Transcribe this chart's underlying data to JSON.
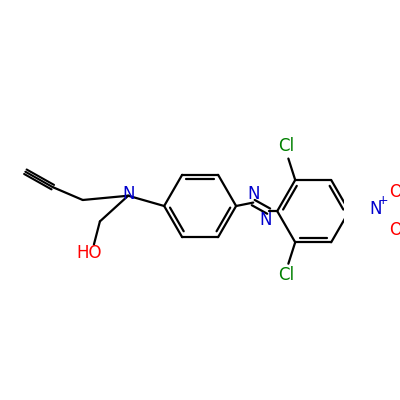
{
  "background_color": "#ffffff",
  "bond_color": "#000000",
  "n_color": "#0000cd",
  "o_color": "#ff0000",
  "cl_color": "#008000",
  "lw": 1.6,
  "figsize": [
    4.0,
    4.0
  ],
  "dpi": 100,
  "xlim": [
    0,
    400
  ],
  "ylim": [
    0,
    400
  ]
}
